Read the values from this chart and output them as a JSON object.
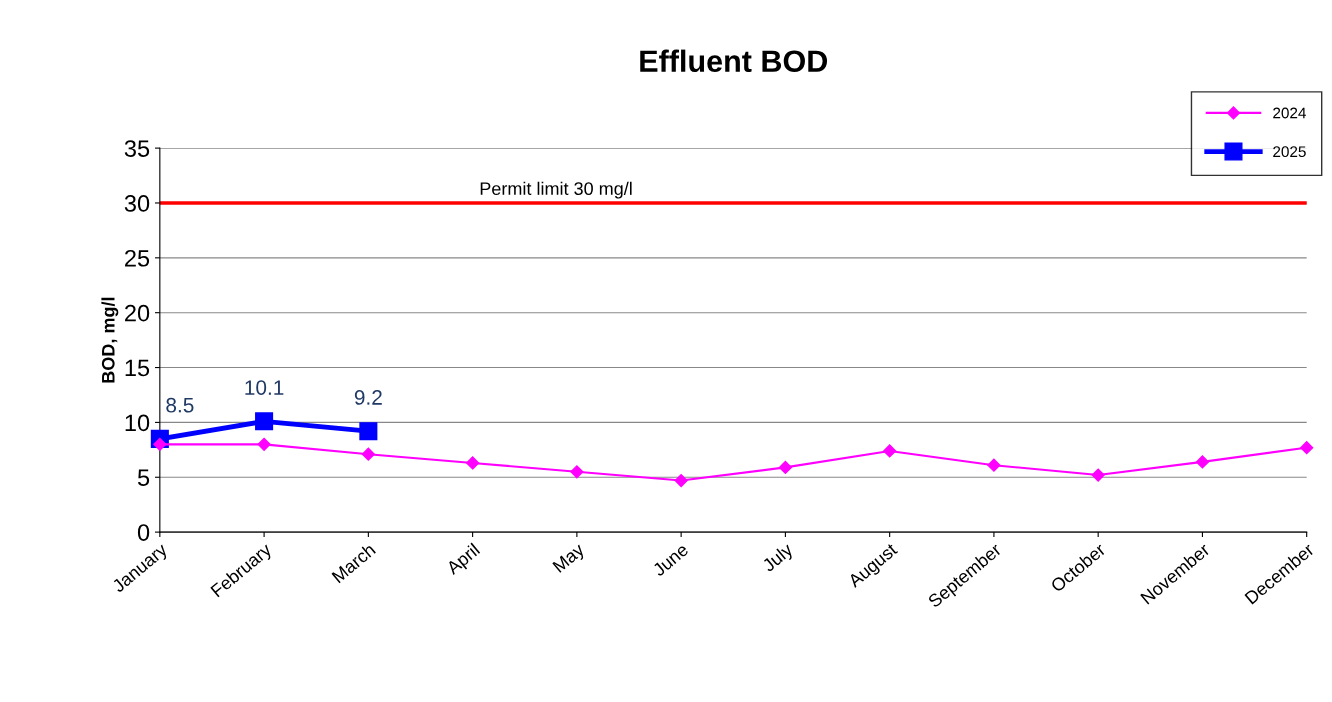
{
  "chart_data": {
    "type": "line",
    "title": "Effluent BOD",
    "ylabel": "BOD, mg/l",
    "categories": [
      "January",
      "February",
      "March",
      "April",
      "May",
      "June",
      "July",
      "August",
      "September",
      "October",
      "November",
      "December"
    ],
    "series": [
      {
        "name": "2024",
        "color": "#ff00ff",
        "marker": "diamond",
        "values": [
          8.0,
          8.0,
          7.1,
          6.3,
          5.5,
          4.7,
          5.9,
          7.4,
          6.1,
          5.2,
          6.4,
          7.7
        ]
      },
      {
        "name": "2025",
        "color": "#0000ff",
        "marker": "square",
        "values": [
          8.5,
          10.1,
          9.2,
          null,
          null,
          null,
          null,
          null,
          null,
          null,
          null,
          null
        ],
        "value_labels": [
          "8.5",
          "10.1",
          "9.2",
          null,
          null,
          null,
          null,
          null,
          null,
          null,
          null,
          null
        ]
      }
    ],
    "ylim": [
      0,
      35
    ],
    "yticks": [
      0,
      5,
      10,
      15,
      20,
      25,
      30,
      35
    ],
    "ref_lines": [
      {
        "axis": "y",
        "value": 30,
        "label": "Permit limit 30 mg/l",
        "color": "#ff0000"
      }
    ],
    "grid": "y",
    "legend": "top right",
    "line_style": "solid"
  }
}
